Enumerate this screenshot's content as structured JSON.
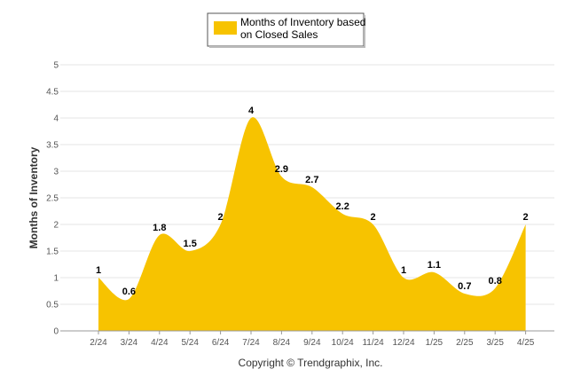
{
  "chart_data": {
    "type": "area",
    "categories": [
      "2/24",
      "3/24",
      "4/24",
      "5/24",
      "6/24",
      "7/24",
      "8/24",
      "9/24",
      "10/24",
      "11/24",
      "12/24",
      "1/25",
      "2/25",
      "3/25",
      "4/25"
    ],
    "series": [
      {
        "name_lines": [
          "Months of Inventory based",
          "on Closed Sales"
        ],
        "values": [
          1,
          0.6,
          1.8,
          1.5,
          2,
          4,
          2.9,
          2.7,
          2.2,
          2,
          1,
          1.1,
          0.7,
          0.8,
          2
        ],
        "labels": [
          "1",
          "0.6",
          "1.8",
          "1.5",
          "2",
          "4",
          "2.9",
          "2.7",
          "2.2",
          "2",
          "1",
          "1.1",
          "0.7",
          "0.8",
          "2"
        ],
        "color": "#F7C300"
      }
    ],
    "ylabel": "Months of Inventory",
    "ylim": [
      0,
      5
    ],
    "yticks": [
      "0",
      "0.5",
      "1",
      "1.5",
      "2",
      "2.5",
      "3",
      "3.5",
      "4",
      "4.5",
      "5"
    ],
    "grid": true,
    "legend_position": "top-center"
  },
  "footer": "Copyright © Trendgraphix, Inc."
}
